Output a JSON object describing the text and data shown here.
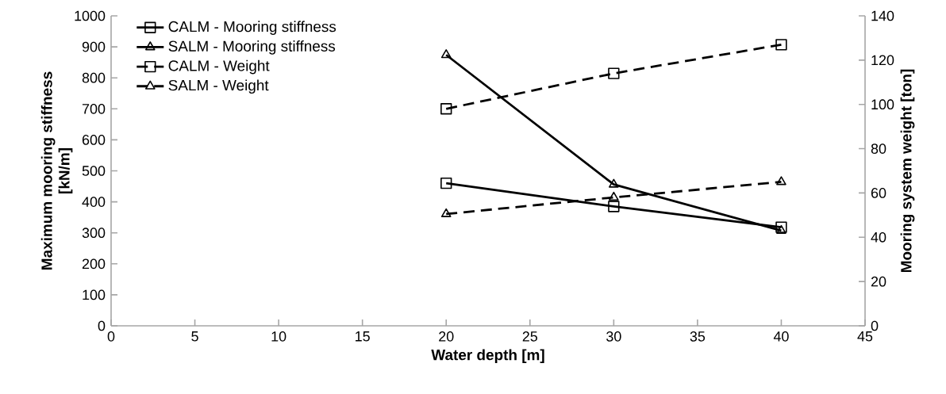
{
  "chart_data": {
    "type": "line",
    "xlabel": "Water depth [m]",
    "ylabel": "Maximum mooring stiffness [kN/m]",
    "y2label": "Mooring system weight [ton]",
    "xlim": [
      0,
      45
    ],
    "xticks": [
      0,
      5,
      10,
      15,
      20,
      25,
      30,
      35,
      40,
      45
    ],
    "ylim": [
      0,
      1000
    ],
    "yticks": [
      0,
      100,
      200,
      300,
      400,
      500,
      600,
      700,
      800,
      900,
      1000
    ],
    "y2lim": [
      0,
      140
    ],
    "y2ticks": [
      0,
      20,
      40,
      60,
      80,
      100,
      120,
      140
    ],
    "x": [
      20,
      30,
      40
    ],
    "grid": false,
    "legend": "top left",
    "series": [
      {
        "name": "CALM - Mooring stiffness",
        "color": "#000000",
        "values": [
          460,
          385,
          318
        ],
        "marker": "square",
        "line_style": "solid"
      },
      {
        "name": "SALM - Mooring stiffness",
        "color": "#000000",
        "values": [
          874,
          456,
          307
        ],
        "marker": "triangle",
        "line_style": "solid"
      },
      {
        "name": "CALM - Weight",
        "color": "#000000",
        "values": [
          98,
          114,
          127
        ],
        "marker": "square",
        "line_style": "dashed",
        "axis": "y2"
      },
      {
        "name": "SALM - Weight",
        "color": "#000000",
        "values": [
          50.5,
          58,
          65
        ],
        "marker": "triangle",
        "line_style": "dashed",
        "axis": "y2"
      }
    ]
  }
}
